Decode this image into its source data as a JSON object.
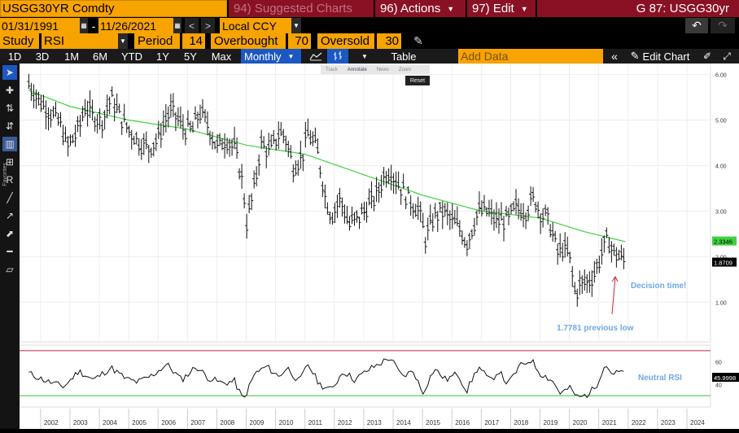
{
  "header": {
    "security": "USGG30YR Comdty",
    "suggested": "94) Suggested Charts",
    "actions": "96) Actions",
    "edit": "97) Edit",
    "page_id": "G 87: USGG30yr"
  },
  "dates": {
    "start": "01/31/1991",
    "sep": "-",
    "end": "11/26/2021",
    "currency": "Local CCY"
  },
  "study": {
    "label": "Study",
    "value": "RSI",
    "period_label": "Period",
    "period": "14",
    "overbought_label": "Overbought",
    "overbought": "70",
    "oversold_label": "Oversold",
    "oversold": "30"
  },
  "toolbar": {
    "ranges": [
      "1D",
      "3D",
      "1M",
      "6M",
      "YTD",
      "1Y",
      "5Y",
      "Max"
    ],
    "frequency": "Monthly",
    "table": "Table",
    "add_data_placeholder": "Add Data",
    "edit_chart": "Edit Chart"
  },
  "mini_toolbar": {
    "items": [
      "Track",
      "Annotate",
      "News",
      "Zoom"
    ],
    "reset": "Reset"
  },
  "icons": {
    "undo": "undo-icon",
    "redo": "redo-icon",
    "pencil": "pencil-icon",
    "line_chart": "line-chart-icon",
    "bar_chart": "ohlc-bar-icon",
    "collapse": "double-chevron-left-icon",
    "expand": "expand-icon",
    "cursor": "cursor-arrow-icon"
  },
  "colors": {
    "orange": "#f7a300",
    "maroon": "#8a1124",
    "ma_line": "#3fd23f",
    "annotation": "#6fa8e8",
    "arrow": "#d02030",
    "overbought_line": "#c02040",
    "oversold_line": "#30c030"
  },
  "chart_data": {
    "type": "line",
    "x_ticks": [
      "2002",
      "2003",
      "2004",
      "2005",
      "2006",
      "2007",
      "2008",
      "2009",
      "2010",
      "2011",
      "2012",
      "2013",
      "2014",
      "2015",
      "2016",
      "2017",
      "2018",
      "2019",
      "2020",
      "2021",
      "2022",
      "2023",
      "2024"
    ],
    "price_axis": {
      "ticks": [
        "6.00",
        "5.00",
        "4.00",
        "3.00",
        "2.00",
        "1.00"
      ],
      "ylim": [
        0.2,
        6.1
      ]
    },
    "price_points": [
      [
        2001.6,
        5.8
      ],
      [
        2002.0,
        5.4
      ],
      [
        2002.3,
        5.2
      ],
      [
        2002.7,
        4.9
      ],
      [
        2002.9,
        4.4
      ],
      [
        2003.3,
        4.8
      ],
      [
        2003.5,
        5.3
      ],
      [
        2003.8,
        5.1
      ],
      [
        2004.1,
        5.0
      ],
      [
        2004.4,
        5.5
      ],
      [
        2004.7,
        5.1
      ],
      [
        2005.0,
        4.8
      ],
      [
        2005.4,
        4.5
      ],
      [
        2005.7,
        4.4
      ],
      [
        2006.0,
        4.6
      ],
      [
        2006.3,
        5.1
      ],
      [
        2006.5,
        5.2
      ],
      [
        2006.9,
        4.8
      ],
      [
        2007.2,
        4.8
      ],
      [
        2007.4,
        5.2
      ],
      [
        2007.7,
        4.9
      ],
      [
        2008.0,
        4.4
      ],
      [
        2008.3,
        4.6
      ],
      [
        2008.6,
        4.4
      ],
      [
        2008.9,
        3.6
      ],
      [
        2009.0,
        2.7
      ],
      [
        2009.3,
        3.6
      ],
      [
        2009.5,
        4.5
      ],
      [
        2009.8,
        4.3
      ],
      [
        2010.1,
        4.7
      ],
      [
        2010.3,
        4.7
      ],
      [
        2010.6,
        4.0
      ],
      [
        2010.9,
        4.2
      ],
      [
        2011.1,
        4.7
      ],
      [
        2011.4,
        4.4
      ],
      [
        2011.7,
        3.3
      ],
      [
        2011.9,
        2.9
      ],
      [
        2012.2,
        3.3
      ],
      [
        2012.5,
        2.7
      ],
      [
        2012.9,
        2.9
      ],
      [
        2013.1,
        3.1
      ],
      [
        2013.4,
        3.3
      ],
      [
        2013.7,
        3.8
      ],
      [
        2013.9,
        3.9
      ],
      [
        2014.2,
        3.6
      ],
      [
        2014.5,
        3.3
      ],
      [
        2014.9,
        3.0
      ],
      [
        2015.1,
        2.4
      ],
      [
        2015.4,
        2.9
      ],
      [
        2015.7,
        3.0
      ],
      [
        2016.0,
        2.8
      ],
      [
        2016.3,
        2.6
      ],
      [
        2016.5,
        2.3
      ],
      [
        2016.9,
        3.0
      ],
      [
        2017.2,
        3.0
      ],
      [
        2017.5,
        2.8
      ],
      [
        2017.9,
        2.8
      ],
      [
        2018.2,
        3.1
      ],
      [
        2018.5,
        3.0
      ],
      [
        2018.8,
        3.3
      ],
      [
        2019.0,
        3.0
      ],
      [
        2019.3,
        2.8
      ],
      [
        2019.6,
        2.1
      ],
      [
        2019.8,
        2.2
      ],
      [
        2020.0,
        2.0
      ],
      [
        2020.2,
        1.2
      ],
      [
        2020.4,
        1.4
      ],
      [
        2020.7,
        1.5
      ],
      [
        2020.9,
        1.7
      ],
      [
        2021.1,
        2.1
      ],
      [
        2021.3,
        2.4
      ],
      [
        2021.5,
        2.1
      ],
      [
        2021.7,
        2.0
      ],
      [
        2021.9,
        1.9
      ]
    ],
    "ma_points": [
      [
        2001.6,
        5.65
      ],
      [
        2003.0,
        5.3
      ],
      [
        2005.0,
        5.0
      ],
      [
        2007.0,
        4.8
      ],
      [
        2009.0,
        4.45
      ],
      [
        2011.0,
        4.25
      ],
      [
        2013.0,
        3.8
      ],
      [
        2015.0,
        3.35
      ],
      [
        2017.0,
        3.0
      ],
      [
        2019.0,
        2.85
      ],
      [
        2020.5,
        2.55
      ],
      [
        2021.9,
        2.33
      ]
    ],
    "last_price_label": "1.8709",
    "ma_last_label": "2.3346",
    "annotations": {
      "decision": "Decision time!",
      "prev_low": "1.7781 previous low"
    },
    "rsi": {
      "ticks": [
        "60",
        "40"
      ],
      "ylim": [
        20,
        75
      ],
      "overbought": 70,
      "oversold": 30,
      "last_label": "45.9998",
      "label": "Neutral RSI",
      "points": [
        [
          2001.6,
          50
        ],
        [
          2002.2,
          43
        ],
        [
          2002.8,
          38
        ],
        [
          2003.3,
          52
        ],
        [
          2003.8,
          44
        ],
        [
          2004.4,
          55
        ],
        [
          2004.9,
          45
        ],
        [
          2005.3,
          42
        ],
        [
          2005.8,
          48
        ],
        [
          2006.3,
          58
        ],
        [
          2006.8,
          44
        ],
        [
          2007.3,
          56
        ],
        [
          2007.7,
          46
        ],
        [
          2008.2,
          41
        ],
        [
          2008.6,
          43
        ],
        [
          2008.9,
          26
        ],
        [
          2009.3,
          50
        ],
        [
          2009.7,
          56
        ],
        [
          2010.1,
          47
        ],
        [
          2010.4,
          55
        ],
        [
          2010.8,
          42
        ],
        [
          2011.1,
          58
        ],
        [
          2011.5,
          40
        ],
        [
          2011.9,
          35
        ],
        [
          2012.3,
          52
        ],
        [
          2012.7,
          44
        ],
        [
          2013.1,
          52
        ],
        [
          2013.5,
          58
        ],
        [
          2013.9,
          64
        ],
        [
          2014.3,
          47
        ],
        [
          2014.7,
          52
        ],
        [
          2015.0,
          32
        ],
        [
          2015.4,
          54
        ],
        [
          2015.8,
          44
        ],
        [
          2016.2,
          50
        ],
        [
          2016.5,
          34
        ],
        [
          2016.9,
          56
        ],
        [
          2017.3,
          43
        ],
        [
          2017.6,
          52
        ],
        [
          2017.9,
          40
        ],
        [
          2018.3,
          56
        ],
        [
          2018.7,
          62
        ],
        [
          2019.0,
          50
        ],
        [
          2019.4,
          44
        ],
        [
          2019.7,
          32
        ],
        [
          2020.0,
          37
        ],
        [
          2020.3,
          28
        ],
        [
          2020.6,
          31
        ],
        [
          2020.9,
          38
        ],
        [
          2021.2,
          58
        ],
        [
          2021.5,
          49
        ],
        [
          2021.8,
          52
        ],
        [
          2021.9,
          46
        ]
      ]
    }
  }
}
